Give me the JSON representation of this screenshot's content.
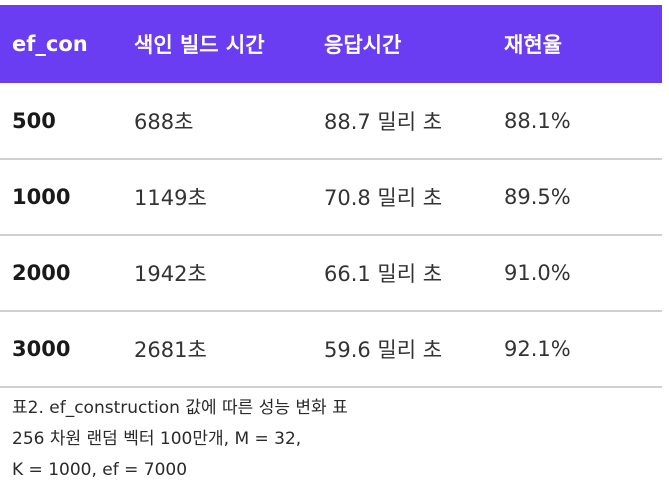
{
  "table": {
    "headers": [
      "ef_con",
      "색인 빌드 시간",
      "응답시간",
      "재현율"
    ],
    "rows": [
      [
        "500",
        "688초",
        "88.7 밀리 초",
        "88.1%"
      ],
      [
        "1000",
        "1149초",
        "70.8 밀리 초",
        "89.5%"
      ],
      [
        "2000",
        "1942초",
        "66.1 밀리 초",
        "91.0%"
      ],
      [
        "3000",
        "2681초",
        "59.6 밀리 초",
        "92.1%"
      ]
    ]
  },
  "caption": {
    "line1": "표2. ef_construction 값에 따른 성능 변화 표",
    "line2": "256 차원 랜덤 벡터 100만개, M = 32,",
    "line3": "K = 1000, ef = 7000"
  },
  "colors": {
    "header_bg": "#6a3cf2",
    "header_text": "#ffffff",
    "row_divider": "#d0d0d0"
  }
}
